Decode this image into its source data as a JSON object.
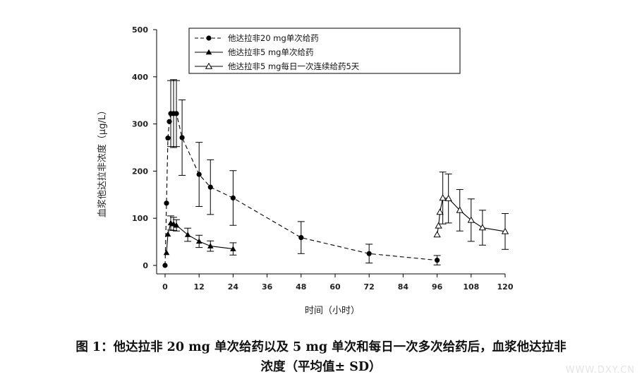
{
  "chart_data": {
    "type": "line",
    "title": "",
    "xlabel": "时间（小时）",
    "ylabel": "血浆他达拉非浓度（μg/L）",
    "xlim": [
      0,
      120
    ],
    "ylim": [
      0,
      500
    ],
    "xticks": [
      0,
      12,
      24,
      36,
      48,
      60,
      72,
      84,
      96,
      108,
      120
    ],
    "yticks": [
      0,
      100,
      200,
      300,
      400,
      500
    ],
    "legend_position": "top-right",
    "grid": false,
    "series": [
      {
        "name": "他达拉非20 mg单次给药",
        "marker": "filled-circle",
        "line": "dashed",
        "points": [
          {
            "x": 0,
            "y": 0
          },
          {
            "x": 0.5,
            "y": 132
          },
          {
            "x": 1,
            "y": 270
          },
          {
            "x": 1.5,
            "y": 305
          },
          {
            "x": 2,
            "y": 322,
            "err": 70
          },
          {
            "x": 3,
            "y": 322,
            "err": 72
          },
          {
            "x": 4,
            "y": 322,
            "err": 70
          },
          {
            "x": 6,
            "y": 271,
            "err": 80
          },
          {
            "x": 12,
            "y": 193,
            "err": 68
          },
          {
            "x": 16,
            "y": 166,
            "err": 58
          },
          {
            "x": 24,
            "y": 143,
            "err": 58
          },
          {
            "x": 48,
            "y": 59,
            "err": 34
          },
          {
            "x": 72,
            "y": 25,
            "err": 20
          },
          {
            "x": 96,
            "y": 11,
            "err": 10
          }
        ]
      },
      {
        "name": "他达拉非5 mg单次给药",
        "marker": "filled-triangle",
        "line": "solid",
        "points": [
          {
            "x": 0.5,
            "y": 27
          },
          {
            "x": 1,
            "y": 66
          },
          {
            "x": 2,
            "y": 90,
            "err": 15
          },
          {
            "x": 3,
            "y": 88,
            "err": 14
          },
          {
            "x": 4,
            "y": 85,
            "err": 12
          },
          {
            "x": 8,
            "y": 65,
            "err": 14
          },
          {
            "x": 12,
            "y": 51,
            "err": 13
          },
          {
            "x": 16,
            "y": 41,
            "err": 11
          },
          {
            "x": 24,
            "y": 35,
            "err": 13
          }
        ]
      },
      {
        "name": "他达拉非5 mg每日一次连续给药5天",
        "marker": "open-triangle",
        "line": "solid",
        "points": [
          {
            "x": 96,
            "y": 65
          },
          {
            "x": 96.5,
            "y": 84
          },
          {
            "x": 97,
            "y": 113
          },
          {
            "x": 98,
            "y": 143,
            "err": 55
          },
          {
            "x": 100,
            "y": 142,
            "err": 52
          },
          {
            "x": 104,
            "y": 117,
            "err": 44
          },
          {
            "x": 108,
            "y": 96,
            "err": 45
          },
          {
            "x": 112,
            "y": 80,
            "err": 37
          },
          {
            "x": 120,
            "y": 72,
            "err": 38
          }
        ]
      }
    ]
  },
  "caption": {
    "line1": "图 1：他达拉非 20 mg 单次给药以及 5 mg 单次和每日一次多次给药后，血浆他达拉非",
    "line2": "浓度（平均值± SD）"
  },
  "watermark": "WWW.DXY.CN"
}
